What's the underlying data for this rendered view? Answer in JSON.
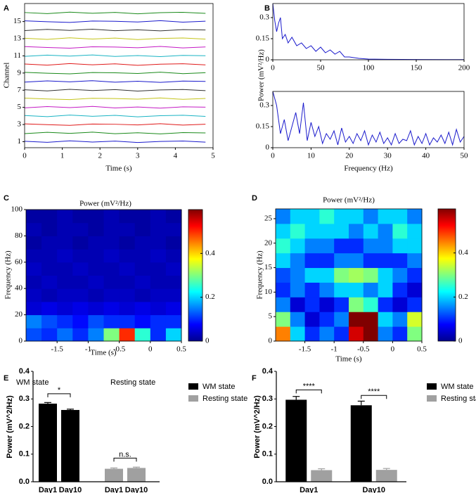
{
  "chart_data": [
    {
      "type": "multitrace",
      "label": "A",
      "xlabel": "Time (s)",
      "ylabel": "Channel",
      "x": [
        0,
        0.6,
        1.2,
        1.8,
        2.4,
        3,
        3.6,
        4.2,
        4.8
      ],
      "xlim": [
        0,
        5
      ],
      "xticks": [
        0,
        1,
        2,
        3,
        4,
        5
      ],
      "ylim": [
        0.3,
        17.1
      ],
      "yticks": [
        1,
        3,
        5,
        7,
        9,
        11,
        13,
        15
      ],
      "series": [
        {
          "color": "#1a1acc",
          "values": [
            1.05,
            0.92,
            1.1,
            0.96,
            1.07,
            0.9,
            1.03,
            1.08,
            0.95
          ]
        },
        {
          "color": "#1a8a1a",
          "values": [
            1.94,
            2.09,
            1.97,
            2.11,
            1.93,
            2.04,
            1.91,
            2.06,
            2.02
          ]
        },
        {
          "color": "#e01a1a",
          "values": [
            3.08,
            2.98,
            2.9,
            3.06,
            3.03,
            2.95,
            3.1,
            2.93,
            3.04
          ]
        },
        {
          "color": "#1ab4c4",
          "values": [
            4.05,
            3.92,
            4.1,
            3.96,
            4.07,
            3.9,
            4.03,
            4.08,
            3.95
          ]
        },
        {
          "color": "#c41ac4",
          "values": [
            4.94,
            5.09,
            4.97,
            5.11,
            4.93,
            5.04,
            4.91,
            5.06,
            5.02
          ]
        },
        {
          "color": "#c4c41a",
          "values": [
            6.08,
            5.98,
            5.9,
            6.06,
            6.03,
            5.95,
            6.1,
            5.93,
            6.04
          ]
        },
        {
          "color": "#333333",
          "values": [
            7.05,
            6.92,
            7.1,
            6.96,
            7.07,
            6.9,
            7.03,
            7.08,
            6.95
          ]
        },
        {
          "color": "#1a1acc",
          "values": [
            7.94,
            8.09,
            7.97,
            8.11,
            7.93,
            8.04,
            7.91,
            8.06,
            8.02
          ]
        },
        {
          "color": "#1a8a1a",
          "values": [
            9.08,
            8.98,
            8.9,
            9.06,
            9.03,
            8.95,
            9.1,
            8.93,
            9.04
          ]
        },
        {
          "color": "#e01a1a",
          "values": [
            10.05,
            9.92,
            10.1,
            9.96,
            10.07,
            9.9,
            10.03,
            10.08,
            9.95
          ]
        },
        {
          "color": "#1ab4c4",
          "values": [
            10.94,
            11.09,
            10.97,
            11.11,
            10.93,
            11.04,
            10.91,
            11.06,
            11.02
          ]
        },
        {
          "color": "#c41ac4",
          "values": [
            12.08,
            11.98,
            11.9,
            12.06,
            12.03,
            11.95,
            12.1,
            11.93,
            12.04
          ]
        },
        {
          "color": "#c4c41a",
          "values": [
            13.05,
            12.92,
            13.1,
            12.96,
            13.07,
            12.9,
            13.03,
            13.08,
            12.95
          ]
        },
        {
          "color": "#333333",
          "values": [
            13.94,
            14.09,
            13.97,
            14.11,
            13.93,
            14.04,
            13.91,
            14.06,
            14.02
          ]
        },
        {
          "color": "#1a1acc",
          "values": [
            15.08,
            14.98,
            14.9,
            15.06,
            15.03,
            14.95,
            15.1,
            14.93,
            15.04
          ]
        },
        {
          "color": "#1a8a1a",
          "values": [
            16.05,
            15.92,
            16.1,
            15.96,
            16.07,
            15.9,
            16.03,
            16.08,
            15.95
          ]
        }
      ]
    },
    {
      "type": "line",
      "label": "B",
      "ylabel": "Power (mV²/Hz)",
      "color": "#1a1acc",
      "x": [
        0,
        2,
        4,
        6,
        8,
        10,
        13,
        16,
        20,
        25,
        30,
        35,
        40,
        45,
        50,
        55,
        60,
        65,
        70,
        75,
        80,
        90,
        100,
        120,
        150,
        200
      ],
      "values": [
        0.4,
        0.28,
        0.2,
        0.26,
        0.3,
        0.15,
        0.18,
        0.12,
        0.16,
        0.1,
        0.12,
        0.08,
        0.1,
        0.06,
        0.09,
        0.05,
        0.07,
        0.04,
        0.06,
        0.02,
        0.02,
        0.01,
        0.005,
        0.003,
        0.002,
        0.001
      ],
      "xlim": [
        0,
        200
      ],
      "xticks": [
        0,
        50,
        100,
        150,
        200
      ],
      "ylim": [
        0,
        0.4
      ],
      "yticks": [
        0,
        0.15,
        0.3
      ]
    },
    {
      "type": "line",
      "xlabel": "Frequency (Hz)",
      "color": "#1a1acc",
      "x": [
        0,
        1,
        2,
        3,
        4,
        5,
        6,
        7,
        8,
        9,
        10,
        11,
        12,
        13,
        14,
        15,
        16,
        17,
        18,
        19,
        20,
        21,
        22,
        23,
        24,
        25,
        26,
        27,
        28,
        29,
        30,
        31,
        32,
        33,
        34,
        35,
        36,
        37,
        38,
        39,
        40,
        41,
        42,
        43,
        44,
        45,
        46,
        47,
        48,
        49,
        50
      ],
      "values": [
        0.4,
        0.3,
        0.1,
        0.2,
        0.05,
        0.15,
        0.25,
        0.1,
        0.32,
        0.05,
        0.18,
        0.08,
        0.15,
        0.03,
        0.1,
        0.06,
        0.12,
        0.02,
        0.14,
        0.04,
        0.08,
        0.03,
        0.1,
        0.05,
        0.12,
        0.02,
        0.09,
        0.04,
        0.11,
        0.03,
        0.07,
        0.02,
        0.1,
        0.03,
        0.06,
        0.05,
        0.12,
        0.02,
        0.08,
        0.03,
        0.1,
        0.02,
        0.07,
        0.04,
        0.09,
        0.03,
        0.11,
        0.02,
        0.13,
        0.04,
        0.08
      ],
      "xlim": [
        0,
        50
      ],
      "xticks": [
        0,
        10,
        20,
        30,
        40,
        50
      ],
      "ylim": [
        0,
        0.4
      ],
      "yticks": [
        0,
        0.15,
        0.3
      ]
    },
    {
      "type": "heatmap",
      "label": "C",
      "title": "Power (mV²/Hz)",
      "xlabel": "Time (s)",
      "ylabel": "Frequency (Hz)",
      "x": [
        -1.875,
        -1.625,
        -1.375,
        -1.125,
        -0.875,
        -0.625,
        -0.375,
        -0.125,
        0.125,
        0.375
      ],
      "y": [
        5,
        15,
        25,
        35,
        45,
        55,
        65,
        75,
        85,
        95
      ],
      "z": [
        [
          0.12,
          0.1,
          0.14,
          0.1,
          0.15,
          0.3,
          0.5,
          0.25,
          0.1,
          0.2
        ],
        [
          0.15,
          0.12,
          0.1,
          0.08,
          0.12,
          0.1,
          0.1,
          0.08,
          0.1,
          0.1
        ],
        [
          0.05,
          0.06,
          0.05,
          0.06,
          0.05,
          0.06,
          0.05,
          0.06,
          0.05,
          0.06
        ],
        [
          0.04,
          0.03,
          0.04,
          0.04,
          0.03,
          0.04,
          0.04,
          0.03,
          0.04,
          0.04
        ],
        [
          0.03,
          0.04,
          0.03,
          0.03,
          0.04,
          0.03,
          0.03,
          0.04,
          0.03,
          0.03
        ],
        [
          0.04,
          0.03,
          0.03,
          0.04,
          0.03,
          0.03,
          0.04,
          0.03,
          0.03,
          0.04
        ],
        [
          0.03,
          0.03,
          0.04,
          0.03,
          0.03,
          0.04,
          0.03,
          0.03,
          0.04,
          0.03
        ],
        [
          0.02,
          0.03,
          0.03,
          0.02,
          0.03,
          0.03,
          0.02,
          0.03,
          0.03,
          0.02
        ],
        [
          0.03,
          0.02,
          0.03,
          0.03,
          0.02,
          0.03,
          0.03,
          0.02,
          0.03,
          0.03
        ],
        [
          0.02,
          0.02,
          0.03,
          0.02,
          0.02,
          0.03,
          0.02,
          0.02,
          0.03,
          0.02
        ]
      ],
      "xlim": [
        -2,
        0.5
      ],
      "xticks": [
        -1.5,
        -1,
        -0.5,
        0,
        0.5
      ],
      "ylim": [
        0,
        100
      ],
      "yticks": [
        0,
        20,
        40,
        60,
        80,
        100
      ],
      "clim": [
        0,
        0.6
      ],
      "cticks": [
        0,
        0.2,
        0.4
      ]
    },
    {
      "type": "heatmap",
      "label": "D",
      "title": "Power (mV²/Hz)",
      "xlabel": "Time (s)",
      "ylabel": "Frequency (Hz)",
      "x": [
        -1.875,
        -1.625,
        -1.375,
        -1.125,
        -0.875,
        -0.625,
        -0.375,
        -0.125,
        0.125,
        0.375
      ],
      "y": [
        1.5,
        4.5,
        7.5,
        10.5,
        13.5,
        16.5,
        19.5,
        22.5,
        25.5
      ],
      "z": [
        [
          0.45,
          0.2,
          0.1,
          0.15,
          0.1,
          0.55,
          0.6,
          0.15,
          0.1,
          0.3
        ],
        [
          0.3,
          0.15,
          0.05,
          0.1,
          0.15,
          0.6,
          0.6,
          0.2,
          0.15,
          0.35
        ],
        [
          0.15,
          0.05,
          0.1,
          0.05,
          0.1,
          0.3,
          0.25,
          0.1,
          0.05,
          0.1
        ],
        [
          0.1,
          0.15,
          0.1,
          0.15,
          0.2,
          0.2,
          0.15,
          0.2,
          0.1,
          0.05
        ],
        [
          0.12,
          0.15,
          0.2,
          0.2,
          0.3,
          0.32,
          0.3,
          0.2,
          0.15,
          0.1
        ],
        [
          0.2,
          0.15,
          0.1,
          0.1,
          0.15,
          0.15,
          0.1,
          0.1,
          0.1,
          0.15
        ],
        [
          0.25,
          0.2,
          0.15,
          0.15,
          0.1,
          0.1,
          0.15,
          0.15,
          0.2,
          0.2
        ],
        [
          0.2,
          0.25,
          0.2,
          0.2,
          0.2,
          0.15,
          0.2,
          0.15,
          0.25,
          0.2
        ],
        [
          0.15,
          0.2,
          0.2,
          0.25,
          0.2,
          0.2,
          0.15,
          0.2,
          0.2,
          0.15
        ]
      ],
      "xlim": [
        -2,
        0.5
      ],
      "xticks": [
        -1.5,
        -1,
        -0.5,
        0,
        0.5
      ],
      "ylim": [
        0,
        27
      ],
      "yticks": [
        0,
        5,
        10,
        15,
        20,
        25
      ],
      "clim": [
        0,
        0.6
      ],
      "cticks": [
        0,
        0.2,
        0.4
      ]
    },
    {
      "type": "bar",
      "label": "E",
      "ylabel": "Power (mV^2/Hz)",
      "categories": [
        "Day1",
        "Day10",
        "Day1",
        "Day10"
      ],
      "groups": [
        "WM state",
        "Resting state"
      ],
      "series": [
        {
          "name": "WM state",
          "color": "#000000",
          "values": [
            0.283,
            0.26,
            null,
            null
          ],
          "errors": [
            0.004,
            0.003,
            null,
            null
          ]
        },
        {
          "name": "Resting state",
          "color": "#a0a0a0",
          "values": [
            null,
            null,
            0.047,
            0.05
          ],
          "errors": [
            null,
            null,
            0.003,
            0.003
          ]
        }
      ],
      "annotations": [
        "*",
        "n.s."
      ],
      "ylim": [
        0,
        0.4
      ],
      "yticks": [
        {
          "value": 0,
          "label": "0.0"
        },
        {
          "value": 0.1,
          "label": "0.1"
        },
        {
          "value": 0.2,
          "label": "0.2"
        },
        {
          "value": 0.3,
          "label": "0.3"
        },
        {
          "value": 0.4,
          "label": "0.4"
        }
      ]
    },
    {
      "type": "groupbar",
      "label": "F",
      "ylabel": "Power (mV^2/Hz)",
      "categories": [
        "Day1",
        "Day10"
      ],
      "series": [
        {
          "name": "WM state",
          "color": "#000000",
          "values": [
            0.297,
            0.277
          ],
          "errors": [
            0.012,
            0.015
          ]
        },
        {
          "name": "Resting state",
          "color": "#a0a0a0",
          "values": [
            0.042,
            0.043
          ],
          "errors": [
            0.005,
            0.005
          ]
        }
      ],
      "annotations": [
        "****",
        "****"
      ],
      "ylim": [
        0,
        0.4
      ],
      "yticks": [
        {
          "value": 0,
          "label": "0.0"
        },
        {
          "value": 0.1,
          "label": "0.1"
        },
        {
          "value": 0.2,
          "label": "0.2"
        },
        {
          "value": 0.3,
          "label": "0.3"
        },
        {
          "value": 0.4,
          "label": "0.4"
        }
      ]
    }
  ]
}
